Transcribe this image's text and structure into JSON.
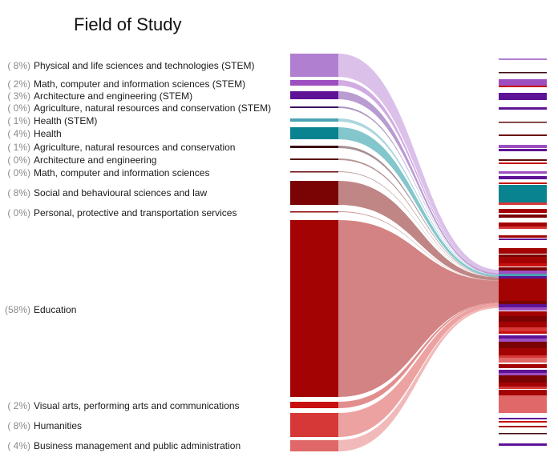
{
  "chart_data": {
    "type": "sankey",
    "title": "Field of Study",
    "categories": [
      {
        "label": "Physical and life sciences and technologies (STEM)",
        "pct_label": "( 8%)",
        "value": 8,
        "color": "#b07fd0",
        "flow_color": "#d9bde8"
      },
      {
        "label": "Math, computer and information sciences (STEM)",
        "pct_label": "( 2%)",
        "value": 2,
        "color": "#9d4fc0",
        "flow_color": "#cfa6e0"
      },
      {
        "label": "Architecture and engineering (STEM)",
        "pct_label": "( 3%)",
        "value": 3,
        "color": "#5e1396",
        "flow_color": "#b597cf"
      },
      {
        "label": "Agriculture, natural resources and conservation (STEM)",
        "pct_label": "( 0%)",
        "value": 0,
        "color": "#3a1060",
        "flow_color": "#a78fbd"
      },
      {
        "label": "Health (STEM)",
        "pct_label": "( 1%)",
        "value": 1,
        "color": "#4aa3b2",
        "flow_color": "#a9d4dc"
      },
      {
        "label": "Health",
        "pct_label": "( 4%)",
        "value": 4,
        "color": "#08838f",
        "flow_color": "#7cc3c9"
      },
      {
        "label": "Agriculture, natural resources and conservation",
        "pct_label": "( 1%)",
        "value": 1,
        "color": "#3d0a14",
        "flow_color": "#a08a8e"
      },
      {
        "label": "Architecture and engineering",
        "pct_label": "( 0%)",
        "value": 0,
        "color": "#5a0a0a",
        "flow_color": "#b09090"
      },
      {
        "label": "Math, computer and information sciences",
        "pct_label": "( 0%)",
        "value": 0,
        "color": "#6a0d0d",
        "flow_color": "#b89898"
      },
      {
        "label": "Social and behavioural sciences and law",
        "pct_label": "( 8%)",
        "value": 8,
        "color": "#7a0404",
        "flow_color": "#bd7f7f"
      },
      {
        "label": "Personal, protective and transportation services",
        "pct_label": "( 0%)",
        "value": 0,
        "color": "#8a0606",
        "flow_color": "#c89090"
      },
      {
        "label": "Education",
        "pct_label": "(58%)",
        "value": 58,
        "color": "#a30303",
        "flow_color": "#d17c7c"
      },
      {
        "label": "Visual arts, performing arts and communications",
        "pct_label": "( 2%)",
        "value": 2,
        "color": "#c80f0f",
        "flow_color": "#e08888"
      },
      {
        "label": "Humanities",
        "pct_label": "( 8%)",
        "value": 8,
        "color": "#d63838",
        "flow_color": "#ec9d9d"
      },
      {
        "label": "Business management and public administration",
        "pct_label": "( 4%)",
        "value": 4,
        "color": "#e06868",
        "flow_color": "#f0b5b5"
      }
    ]
  }
}
